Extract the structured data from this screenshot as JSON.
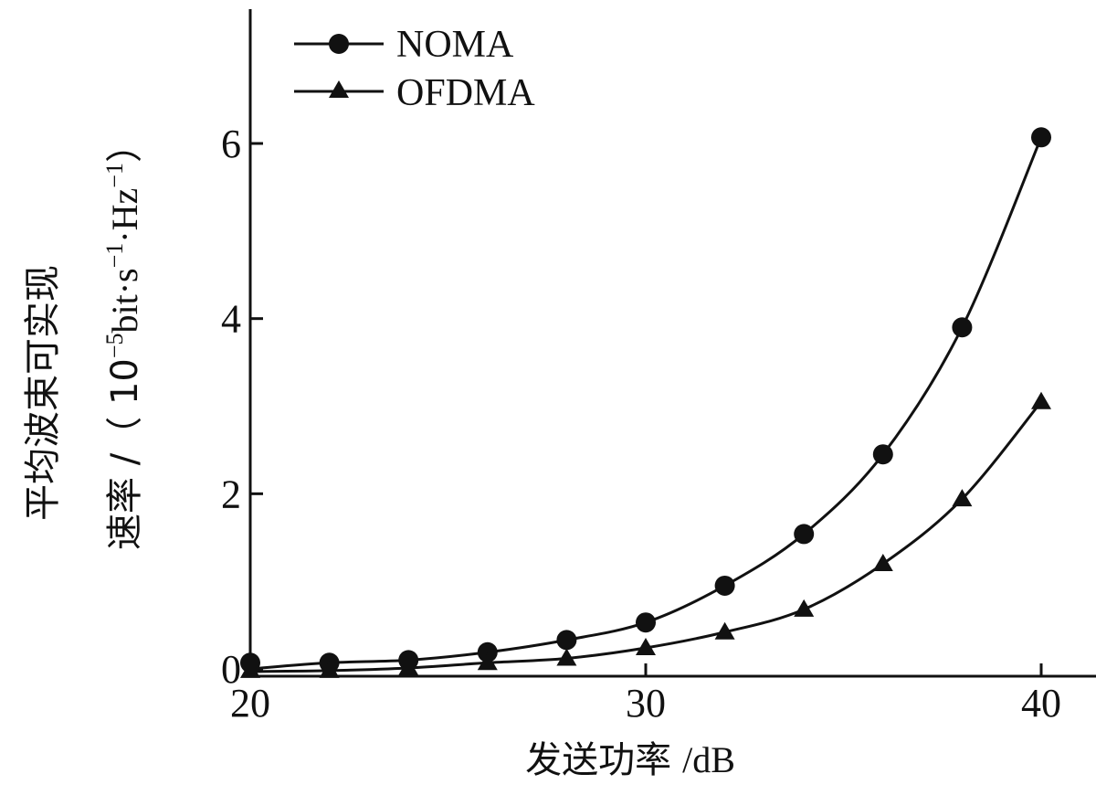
{
  "chart_data": {
    "type": "line",
    "xlabel": {
      "text": "发送功率",
      "unit": "/dB"
    },
    "ylabel": {
      "line1": "平均波束可实现",
      "line2_prefix": "速率 /（ 10",
      "exp1": "−5",
      "mid": "bit·s",
      "exp2": "−1",
      "mid2": "·Hz",
      "exp3": "−1",
      "suffix": "）"
    },
    "xlim": [
      20,
      41
    ],
    "ylim": [
      0,
      7.4
    ],
    "x_ticks": [
      20,
      30,
      40
    ],
    "y_ticks": [
      0,
      2,
      4,
      6
    ],
    "grid": false,
    "legend_position": "top-left",
    "x": [
      20,
      22,
      24,
      26,
      28,
      30,
      32,
      34,
      36,
      38,
      40
    ],
    "series": [
      {
        "name": "NOMA",
        "marker": "circle",
        "values": [
          0.07,
          0.07,
          0.1,
          0.19,
          0.33,
          0.53,
          0.95,
          1.54,
          2.45,
          3.9,
          6.07
        ],
        "line_y": [
          0.0,
          0.07,
          0.1,
          0.19,
          0.33,
          0.53,
          0.95,
          1.54,
          2.45,
          3.9,
          6.07
        ]
      },
      {
        "name": "OFDMA",
        "marker": "triangle",
        "values": [
          -0.02,
          -0.02,
          0.01,
          0.07,
          0.12,
          0.24,
          0.42,
          0.68,
          1.2,
          1.94,
          3.05
        ],
        "line_y": [
          -0.03,
          -0.02,
          0.01,
          0.07,
          0.12,
          0.24,
          0.42,
          0.68,
          1.2,
          1.94,
          3.05
        ]
      }
    ],
    "colors": {
      "ink": "#111111",
      "background": "#ffffff"
    }
  }
}
